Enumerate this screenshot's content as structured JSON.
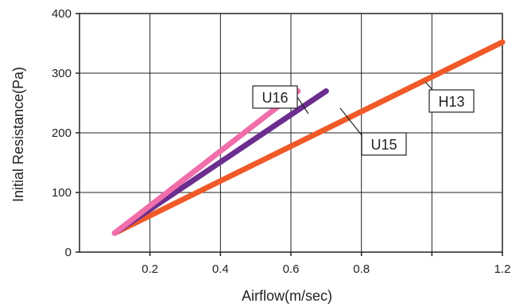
{
  "chart_data": {
    "type": "line",
    "title": "",
    "xlabel": "Airflow(m/sec)",
    "ylabel": "Initial Resistance(Pa)",
    "xlim": [
      0,
      1.2
    ],
    "ylim": [
      0,
      400
    ],
    "x_ticks": [
      0.2,
      0.4,
      0.6,
      0.8,
      1.2
    ],
    "x_tick_labels": [
      "0.2",
      "0.4",
      "0.6",
      "0.8",
      "1.2"
    ],
    "x_gridlines": [
      0.2,
      0.4,
      0.6,
      0.8,
      1.0,
      1.2
    ],
    "y_ticks": [
      0,
      100,
      200,
      300,
      400
    ],
    "y_tick_labels": [
      "0",
      "100",
      "200",
      "300",
      "400"
    ],
    "grid": true,
    "legend": "none",
    "series": [
      {
        "name": "H13",
        "color": "#f05a28",
        "x": [
          0.1,
          1.2
        ],
        "y": [
          32,
          352
        ]
      },
      {
        "name": "U15",
        "color": "#6b2d8e",
        "x": [
          0.1,
          0.7
        ],
        "y": [
          32,
          270
        ]
      },
      {
        "name": "U16",
        "color": "#f06eaa",
        "x": [
          0.1,
          0.62
        ],
        "y": [
          32,
          270
        ]
      }
    ]
  }
}
